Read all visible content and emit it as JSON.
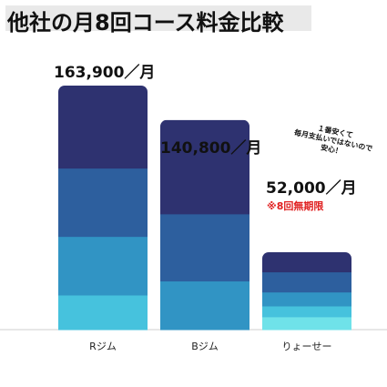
{
  "title": "他社の月8回コース料金比較",
  "chart_data": {
    "type": "bar",
    "stacked_segments_decorative": true,
    "categories": [
      "Rジム",
      "Bジム",
      "りょーせー"
    ],
    "values": [
      163900,
      140800,
      52000
    ],
    "value_labels": [
      "163,900／月",
      "140,800／月",
      "52,000／月"
    ],
    "ylim": [
      0,
      163900
    ],
    "grid": false,
    "legend": "none",
    "annotation": "※8回無期限",
    "callout_lines": [
      "１番安くて",
      "毎月支払いではないので",
      "安心！"
    ]
  },
  "colors": {
    "title_band": "#e9e9e9",
    "segment_1": "#2e3270",
    "segment_2": "#2d5f9e",
    "segment_3": "#3194c4",
    "segment_4": "#46c2dd",
    "segment_cyan": "#6fe2e9",
    "note": "#e02020"
  }
}
